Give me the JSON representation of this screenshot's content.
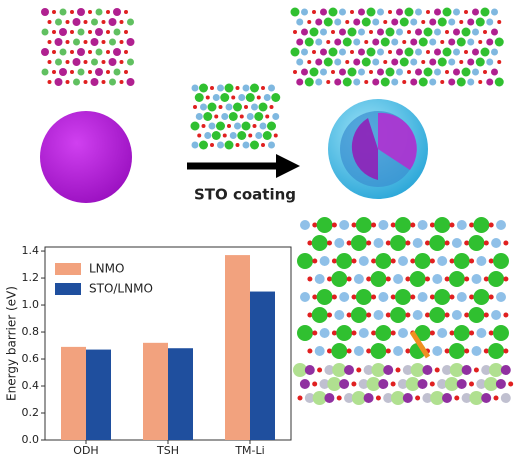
{
  "figure": {
    "arrow_label": "STO coating"
  },
  "chart_data": {
    "type": "bar",
    "categories": [
      "ODH",
      "TSH",
      "TM-Li"
    ],
    "series": [
      {
        "name": "LNMO",
        "color": "#f2a27e",
        "values": [
          0.69,
          0.72,
          1.37
        ]
      },
      {
        "name": "STO/LNMO",
        "color": "#1f4f9e",
        "values": [
          0.67,
          0.68,
          1.1
        ]
      }
    ],
    "ylabel": "Energy barrier (eV)",
    "ylim": [
      0,
      1.43
    ],
    "yticks": [
      {
        "value": 0,
        "label": "0.0"
      },
      0.2,
      0.4,
      0.6,
      0.8,
      {
        "value": 1,
        "label": "1.0"
      },
      1.2,
      1.4
    ],
    "legend": "upper left"
  }
}
